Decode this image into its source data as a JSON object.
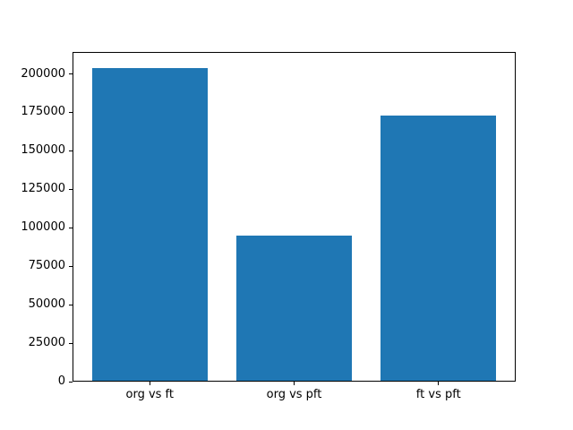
{
  "figure": {
    "background": "#ffffff"
  },
  "chart_data": {
    "type": "bar",
    "title": "",
    "xlabel": "",
    "ylabel": "",
    "categories": [
      "org vs ft",
      "org vs pft",
      "ft vs pft"
    ],
    "values": [
      204000,
      95000,
      173000
    ],
    "bar_color": "#1f77b4",
    "axis_color": "#000000",
    "ylim": [
      0,
      214300
    ],
    "xlim": [
      -0.535,
      2.535
    ],
    "bar_width": 0.8,
    "yticks": [
      0,
      25000,
      50000,
      75000,
      100000,
      125000,
      150000,
      175000,
      200000
    ],
    "ytick_labels": [
      "0",
      "25000",
      "50000",
      "75000",
      "100000",
      "125000",
      "150000",
      "175000",
      "200000"
    ],
    "grid": false,
    "legend": null
  }
}
